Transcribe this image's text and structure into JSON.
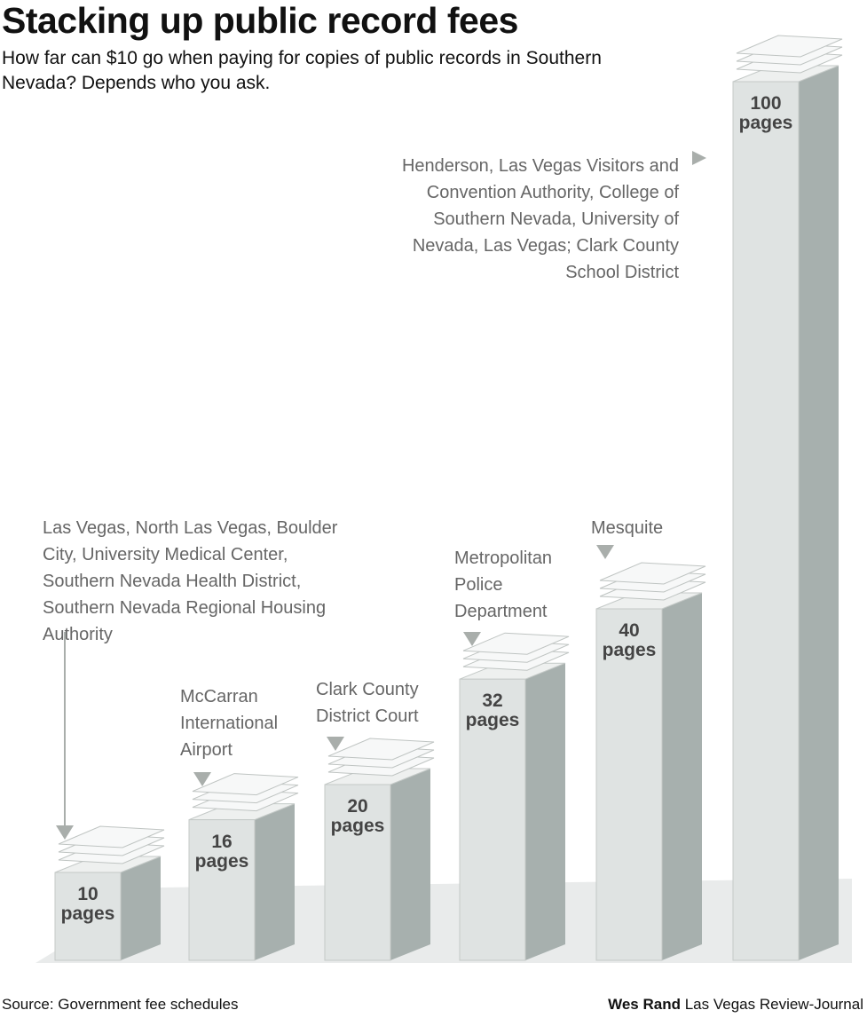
{
  "chart_data": {
    "type": "bar",
    "title": "Stacking up public record fees",
    "subtitle": "How far can $10 go when paying for copies of public records in Southern Nevada? Depends who you ask.",
    "categories": [
      "Las Vegas, North Las Vegas, Boulder City, University Medical Center, Southern Nevada Health District, Southern Nevada Regional Housing Authority",
      "McCarran International Airport",
      "Clark County District Court",
      "Metropolitan Police Department",
      "Mesquite",
      "Henderson, Las Vegas Visitors and Convention Authority, College of Southern Nevada, University of Nevada, Las Vegas; Clark County School District"
    ],
    "values": [
      10,
      16,
      20,
      32,
      40,
      100
    ],
    "value_labels": [
      "10 pages",
      "16 pages",
      "20 pages",
      "32 pages",
      "40 pages",
      "100 pages"
    ],
    "color": "#dfe3e2",
    "ylim": [
      0,
      100
    ],
    "source": "Source: Government fee schedules",
    "credit": {
      "name": "Wes Rand",
      "outlet": "Las Vegas Review-Journal"
    }
  }
}
